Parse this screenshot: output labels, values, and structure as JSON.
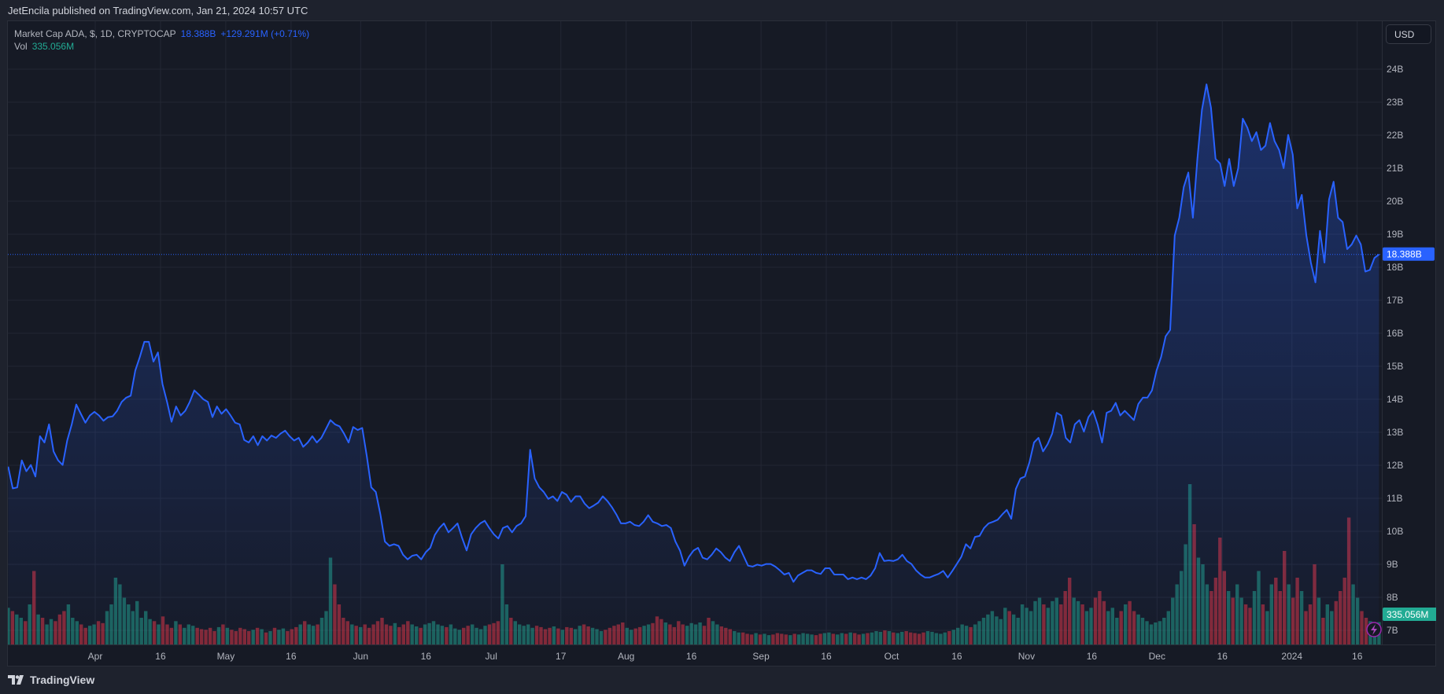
{
  "header": {
    "published": "JetEncila published on TradingView.com, Jan 21, 2024 10:57 UTC"
  },
  "legend": {
    "symbol": "Market Cap ADA, $, 1D, CRYPTOCAP",
    "last": "18.388B",
    "change": "+129.291M (+0.71%)",
    "vol_label": "Vol",
    "vol_value": "335.056M"
  },
  "axis": {
    "currency_button": "USD",
    "price_label": "18.388B",
    "volume_label": "335.056M"
  },
  "footer": {
    "brand": "TradingView"
  },
  "colors": {
    "background": "#161a25",
    "line": "#2962ff",
    "up": "#22ab94",
    "down": "#f23645",
    "grid": "#232734"
  },
  "chart_data": {
    "type": "line",
    "title": "Market Cap ADA, $, 1D, CRYPTOCAP",
    "x_start": "2023-03-12",
    "x_end": "2024-01-21",
    "ylabel": "Market Cap (USD, B)",
    "ylim": [
      7,
      24.6
    ],
    "y_ticks": [
      "7B",
      "8B",
      "9B",
      "10B",
      "11B",
      "12B",
      "13B",
      "14B",
      "15B",
      "16B",
      "17B",
      "18B",
      "19B",
      "20B",
      "21B",
      "22B",
      "23B",
      "24B"
    ],
    "x_ticks": [
      {
        "label": "Apr",
        "date": "2023-04-01"
      },
      {
        "label": "16",
        "date": "2023-04-16"
      },
      {
        "label": "May",
        "date": "2023-05-01"
      },
      {
        "label": "16",
        "date": "2023-05-16"
      },
      {
        "label": "Jun",
        "date": "2023-06-01"
      },
      {
        "label": "16",
        "date": "2023-06-16"
      },
      {
        "label": "Jul",
        "date": "2023-07-01"
      },
      {
        "label": "17",
        "date": "2023-07-17"
      },
      {
        "label": "Aug",
        "date": "2023-08-01"
      },
      {
        "label": "16",
        "date": "2023-08-16"
      },
      {
        "label": "Sep",
        "date": "2023-09-01"
      },
      {
        "label": "16",
        "date": "2023-09-16"
      },
      {
        "label": "Oct",
        "date": "2023-10-01"
      },
      {
        "label": "16",
        "date": "2023-10-16"
      },
      {
        "label": "Nov",
        "date": "2023-11-01"
      },
      {
        "label": "16",
        "date": "2023-11-16"
      },
      {
        "label": "Dec",
        "date": "2023-12-01"
      },
      {
        "label": "16",
        "date": "2023-12-16"
      },
      {
        "label": "2024",
        "date": "2024-01-01"
      },
      {
        "label": "16",
        "date": "2024-01-16"
      }
    ],
    "market_cap_b": [
      11.96,
      11.3,
      11.33,
      12.15,
      11.82,
      12.01,
      11.66,
      12.88,
      12.69,
      13.24,
      12.42,
      12.15,
      12.01,
      12.75,
      13.24,
      13.84,
      13.56,
      13.29,
      13.51,
      13.62,
      13.51,
      13.35,
      13.46,
      13.48,
      13.65,
      13.92,
      14.05,
      14.11,
      14.87,
      15.28,
      15.74,
      15.74,
      15.14,
      15.42,
      14.46,
      13.92,
      13.32,
      13.78,
      13.51,
      13.65,
      13.92,
      14.27,
      14.14,
      14.0,
      13.92,
      13.46,
      13.78,
      13.56,
      13.7,
      13.51,
      13.29,
      13.24,
      12.77,
      12.69,
      12.88,
      12.61,
      12.88,
      12.75,
      12.9,
      12.83,
      12.96,
      13.05,
      12.88,
      12.75,
      12.83,
      12.56,
      12.69,
      12.88,
      12.69,
      12.83,
      13.1,
      13.37,
      13.24,
      13.18,
      12.96,
      12.69,
      13.16,
      13.07,
      13.13,
      12.28,
      11.33,
      11.19,
      10.51,
      9.69,
      9.56,
      9.61,
      9.56,
      9.29,
      9.15,
      9.26,
      9.29,
      9.15,
      9.37,
      9.5,
      9.89,
      10.1,
      10.24,
      9.97,
      10.1,
      10.24,
      9.8,
      9.42,
      9.91,
      10.1,
      10.24,
      10.32,
      10.1,
      9.91,
      9.78,
      10.1,
      10.16,
      9.97,
      10.16,
      10.24,
      10.46,
      12.47,
      11.6,
      11.33,
      11.19,
      10.98,
      11.06,
      10.92,
      11.19,
      11.11,
      10.89,
      11.06,
      11.06,
      10.84,
      10.7,
      10.78,
      10.87,
      11.06,
      10.92,
      10.73,
      10.51,
      10.24,
      10.24,
      10.29,
      10.19,
      10.16,
      10.29,
      10.49,
      10.29,
      10.24,
      10.16,
      10.19,
      10.1,
      9.69,
      9.42,
      8.96,
      9.23,
      9.42,
      9.5,
      9.2,
      9.15,
      9.29,
      9.48,
      9.37,
      9.2,
      9.1,
      9.37,
      9.56,
      9.26,
      8.96,
      8.93,
      8.99,
      8.96,
      9.01,
      9.01,
      8.93,
      8.82,
      8.69,
      8.74,
      8.47,
      8.66,
      8.74,
      8.82,
      8.82,
      8.74,
      8.71,
      8.88,
      8.88,
      8.69,
      8.69,
      8.69,
      8.55,
      8.6,
      8.55,
      8.6,
      8.55,
      8.66,
      8.88,
      9.34,
      9.1,
      9.12,
      9.1,
      9.15,
      9.29,
      9.1,
      9.01,
      8.82,
      8.69,
      8.6,
      8.6,
      8.66,
      8.71,
      8.8,
      8.6,
      8.8,
      9.01,
      9.23,
      9.61,
      9.48,
      9.83,
      9.86,
      10.1,
      10.24,
      10.29,
      10.35,
      10.51,
      10.65,
      10.38,
      11.28,
      11.6,
      11.66,
      12.09,
      12.69,
      12.83,
      12.42,
      12.64,
      12.96,
      13.59,
      13.51,
      12.83,
      12.69,
      13.24,
      13.37,
      13.02,
      13.46,
      13.65,
      13.24,
      12.69,
      13.59,
      13.65,
      13.89,
      13.51,
      13.65,
      13.51,
      13.37,
      13.86,
      14.05,
      14.05,
      14.27,
      14.87,
      15.28,
      15.91,
      16.1,
      18.96,
      19.5,
      20.43,
      20.87,
      19.5,
      21.28,
      22.77,
      23.54,
      22.83,
      21.28,
      21.14,
      20.46,
      21.28,
      20.46,
      21.0,
      22.5,
      22.23,
      21.82,
      22.09,
      21.55,
      21.68,
      22.37,
      21.82,
      21.55,
      21.0,
      22.01,
      21.41,
      19.78,
      20.19,
      18.96,
      18.14,
      17.54,
      19.1,
      18.14,
      20.05,
      20.59,
      19.5,
      19.37,
      18.55,
      18.69,
      18.96,
      18.69,
      17.87,
      17.92,
      18.28,
      18.388
    ],
    "volume_m": [
      550,
      500,
      450,
      400,
      350,
      600,
      1100,
      450,
      400,
      300,
      380,
      350,
      450,
      500,
      600,
      400,
      350,
      300,
      250,
      280,
      300,
      350,
      320,
      500,
      600,
      1000,
      900,
      700,
      600,
      500,
      650,
      400,
      500,
      380,
      350,
      300,
      420,
      300,
      250,
      350,
      300,
      250,
      300,
      280,
      250,
      230,
      220,
      250,
      200,
      260,
      300,
      250,
      220,
      200,
      250,
      230,
      200,
      220,
      250,
      230,
      180,
      200,
      250,
      220,
      240,
      200,
      230,
      260,
      300,
      350,
      300,
      280,
      300,
      400,
      500,
      1300,
      900,
      600,
      400,
      350,
      300,
      280,
      260,
      300,
      250,
      300,
      350,
      400,
      300,
      280,
      320,
      260,
      300,
      350,
      300,
      270,
      250,
      300,
      320,
      350,
      300,
      280,
      260,
      300,
      240,
      220,
      250,
      280,
      300,
      250,
      230,
      280,
      300,
      320,
      350,
      1200,
      600,
      400,
      350,
      300,
      280,
      300,
      250,
      280,
      260,
      230,
      250,
      270,
      240,
      220,
      260,
      250,
      230,
      280,
      300,
      270,
      250,
      230,
      200,
      220,
      250,
      280,
      300,
      330,
      250,
      220,
      240,
      260,
      280,
      300,
      320,
      420,
      380,
      330,
      300,
      260,
      350,
      300,
      280,
      320,
      300,
      330,
      280,
      400,
      350,
      300,
      270,
      250,
      230,
      200,
      180,
      180,
      160,
      150,
      170,
      150,
      160,
      140,
      150,
      170,
      160,
      150,
      140,
      160,
      150,
      170,
      160,
      150,
      140,
      160,
      170,
      180,
      160,
      150,
      170,
      160,
      180,
      170,
      150,
      160,
      170,
      180,
      200,
      190,
      210,
      200,
      180,
      170,
      190,
      200,
      180,
      170,
      160,
      180,
      200,
      190,
      170,
      160,
      180,
      200,
      220,
      250,
      300,
      280,
      260,
      300,
      350,
      400,
      450,
      500,
      420,
      380,
      550,
      500,
      450,
      400,
      600,
      550,
      500,
      650,
      700,
      600,
      550,
      650,
      700,
      600,
      800,
      1000,
      700,
      650,
      600,
      500,
      550,
      700,
      800,
      650,
      500,
      550,
      400,
      500,
      600,
      650,
      500,
      450,
      400,
      350,
      300,
      330,
      350,
      400,
      500,
      700,
      900,
      1100,
      1500,
      2400,
      1800,
      1300,
      1200,
      900,
      800,
      1000,
      1600,
      1100,
      800,
      700,
      900,
      700,
      600,
      550,
      800,
      1100,
      600,
      500,
      900,
      1000,
      800,
      1400,
      900,
      700,
      1000,
      800,
      500,
      600,
      1200,
      700,
      400,
      600,
      500,
      650,
      800,
      1000,
      1900,
      900,
      700,
      500,
      400,
      350,
      300,
      335
    ]
  }
}
